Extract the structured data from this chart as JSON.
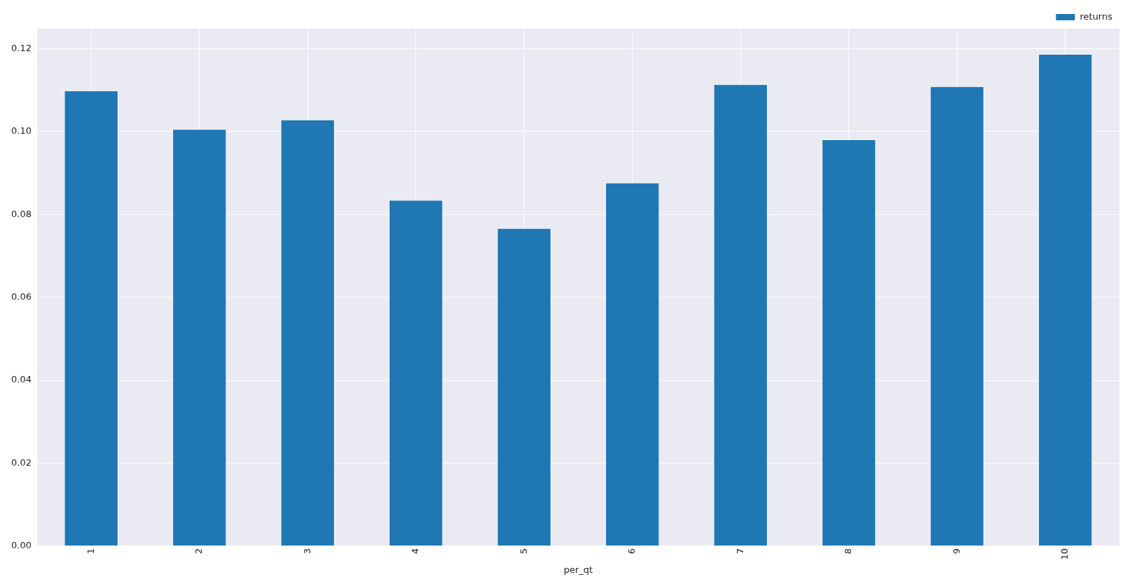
{
  "chart_data": {
    "type": "bar",
    "xlabel": "per_qt",
    "categories": [
      "1",
      "2",
      "3",
      "4",
      "5",
      "6",
      "7",
      "8",
      "9",
      "10"
    ],
    "series": [
      {
        "name": "returns",
        "color": "#1f77b4",
        "values": [
          0.1099,
          0.1006,
          0.1029,
          0.0835,
          0.0767,
          0.0877,
          0.1114,
          0.0981,
          0.1109,
          0.1187
        ]
      }
    ],
    "ylim": [
      0,
      0.1248
    ],
    "yticks": [
      {
        "value": 0,
        "label": "0.00"
      },
      {
        "value": 0.02,
        "label": "0.02"
      },
      {
        "value": 0.04,
        "label": "0.04"
      },
      {
        "value": 0.06,
        "label": "0.06"
      },
      {
        "value": 0.08,
        "label": "0.08"
      },
      {
        "value": 0.1,
        "label": "0.10"
      },
      {
        "value": 0.12,
        "label": "0.12"
      }
    ],
    "grid": true,
    "legend": "top right"
  }
}
